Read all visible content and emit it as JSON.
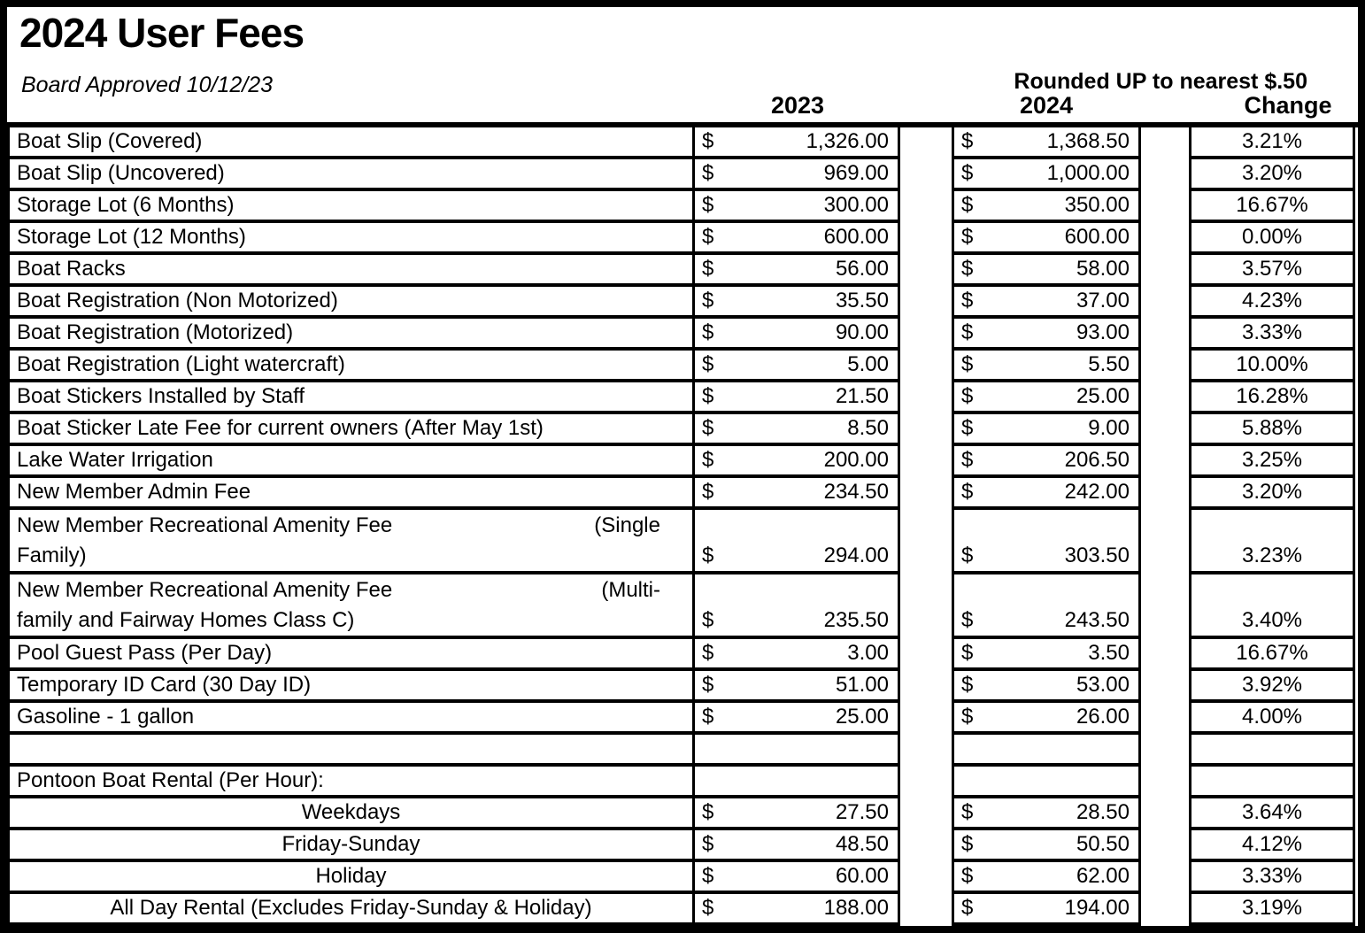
{
  "sheet": {
    "title": "2024 User Fees",
    "approval_note": "Board Approved 10/12/23",
    "rounding_note": "Rounded UP to nearest $.50",
    "currency_symbol": "$"
  },
  "columns": {
    "c2023": "2023",
    "c2024": "2024",
    "change": "Change"
  },
  "rows": [
    {
      "kind": "fee",
      "label": "Boat Slip (Covered)",
      "v2023": "1,326.00",
      "v2024": "1,368.50",
      "change": "3.21%"
    },
    {
      "kind": "fee",
      "label": "Boat Slip (Uncovered)",
      "v2023": "969.00",
      "v2024": "1,000.00",
      "change": "3.20%"
    },
    {
      "kind": "fee",
      "label": "Storage Lot (6 Months)",
      "v2023": "300.00",
      "v2024": "350.00",
      "change": "16.67%"
    },
    {
      "kind": "fee",
      "label": "Storage Lot (12 Months)",
      "v2023": "600.00",
      "v2024": "600.00",
      "change": "0.00%"
    },
    {
      "kind": "fee",
      "label": "Boat Racks",
      "v2023": "56.00",
      "v2024": "58.00",
      "change": "3.57%"
    },
    {
      "kind": "fee",
      "label": "Boat Registration (Non Motorized)",
      "v2023": "35.50",
      "v2024": "37.00",
      "change": "4.23%"
    },
    {
      "kind": "fee",
      "label": "Boat Registration (Motorized)",
      "v2023": "90.00",
      "v2024": "93.00",
      "change": "3.33%"
    },
    {
      "kind": "fee",
      "label": "Boat Registration (Light watercraft)",
      "v2023": "5.00",
      "v2024": "5.50",
      "change": "10.00%"
    },
    {
      "kind": "fee",
      "label": "Boat Stickers Installed by Staff",
      "v2023": "21.50",
      "v2024": "25.00",
      "change": "16.28%"
    },
    {
      "kind": "fee",
      "label": "Boat Sticker Late Fee for current owners (After May 1st)",
      "v2023": "8.50",
      "v2024": "9.00",
      "change": "5.88%"
    },
    {
      "kind": "fee",
      "label": "Lake Water Irrigation",
      "v2023": "200.00",
      "v2024": "206.50",
      "change": "3.25%"
    },
    {
      "kind": "fee",
      "label": "New Member Admin Fee",
      "v2023": "234.50",
      "v2024": "242.00",
      "change": "3.20%"
    },
    {
      "kind": "fee2",
      "label": "New Member Recreational Amenity Fee",
      "label_right": "(Single",
      "label2": "Family)",
      "v2023": "294.00",
      "v2024": "303.50",
      "change": "3.23%"
    },
    {
      "kind": "fee2",
      "label": "New Member Recreational Amenity Fee",
      "label_right": "(Multi-",
      "label2": "family and Fairway Homes Class C)",
      "v2023": "235.50",
      "v2024": "243.50",
      "change": "3.40%"
    },
    {
      "kind": "fee",
      "label": "Pool Guest Pass (Per Day)",
      "v2023": "3.00",
      "v2024": "3.50",
      "change": "16.67%"
    },
    {
      "kind": "fee",
      "label": "Temporary ID Card (30 Day ID)",
      "v2023": "51.00",
      "v2024": "53.00",
      "change": "3.92%"
    },
    {
      "kind": "fee",
      "label": "Gasoline - 1 gallon",
      "v2023": "25.00",
      "v2024": "26.00",
      "change": "4.00%"
    },
    {
      "kind": "blank",
      "label": "",
      "v2023": "",
      "v2024": "",
      "change": ""
    },
    {
      "kind": "section",
      "label": "Pontoon Boat Rental (Per Hour):",
      "v2023": "",
      "v2024": "",
      "change": ""
    },
    {
      "kind": "sub",
      "label": "Weekdays",
      "v2023": "27.50",
      "v2024": "28.50",
      "change": "3.64%"
    },
    {
      "kind": "sub",
      "label": "Friday-Sunday",
      "v2023": "48.50",
      "v2024": "50.50",
      "change": "4.12%"
    },
    {
      "kind": "sub",
      "label": "Holiday",
      "v2023": "60.00",
      "v2024": "62.00",
      "change": "3.33%"
    },
    {
      "kind": "sub",
      "label": "All Day Rental (Excludes Friday-Sunday & Holiday)",
      "v2023": "188.00",
      "v2024": "194.00",
      "change": "3.19%"
    }
  ]
}
